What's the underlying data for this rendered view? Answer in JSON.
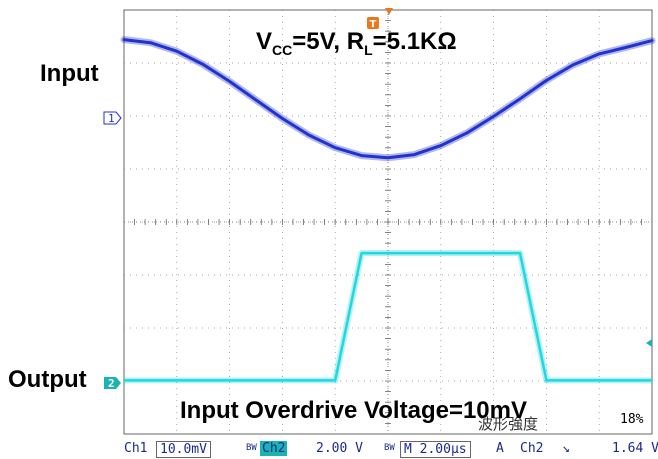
{
  "chart_data": {
    "type": "line",
    "title": "V_CC=5V, R_L=5.1KΩ",
    "title_parts": {
      "v": "V",
      "v_sub": "CC",
      "v_val": "=5V, ",
      "r": "R",
      "r_sub": "L",
      "r_val": "=5.1KΩ"
    },
    "annotation": "Input Overdrive Voltage=10mV",
    "grid": true,
    "x_divisions": 10,
    "y_divisions": 8,
    "time_per_div_us": 2.0,
    "x_us": [
      0,
      1,
      2,
      3,
      4,
      5,
      6,
      7,
      8,
      9,
      10,
      11,
      12,
      13,
      14,
      15,
      16,
      17,
      18,
      19,
      20
    ],
    "series": [
      {
        "name": "Input",
        "channel": "Ch1",
        "color": "#2233cc",
        "scale_per_div": "10.0mV",
        "values_mv": [
          14.8,
          14.2,
          12.6,
          10.1,
          6.9,
          3.4,
          -0.1,
          -3.2,
          -5.6,
          -7.1,
          -7.5,
          -6.9,
          -5.2,
          -2.8,
          0.3,
          3.6,
          7.1,
          10.0,
          12.1,
          13.3,
          14.6
        ]
      },
      {
        "name": "Output",
        "channel": "Ch2",
        "color": "#22d8e0",
        "scale_per_div": "2.00 V",
        "values_v": [
          0.1,
          0.1,
          0.1,
          0.1,
          0.1,
          0.1,
          0.1,
          0.1,
          0.1,
          4.9,
          4.9,
          4.9,
          4.9,
          4.9,
          4.9,
          4.9,
          0.1,
          0.1,
          0.1,
          0.1,
          0.1
        ]
      }
    ]
  },
  "labels": {
    "input": "Input",
    "output": "Output",
    "wave_note": "波形強度",
    "pct": "18%"
  },
  "markers": {
    "ch1": "1",
    "ch2": "2",
    "trigger": "T"
  },
  "status": {
    "ch1": "Ch1",
    "ch1_scale": "10.0mV",
    "ch2": "Ch2",
    "ch2_scale": "2.00 V",
    "timebase": "M 2.00μs",
    "trig_mode": "A",
    "trig_src": "Ch2",
    "trig_slope": "↘",
    "trig_level": "1.64 V",
    "bw_mark": "BW"
  }
}
